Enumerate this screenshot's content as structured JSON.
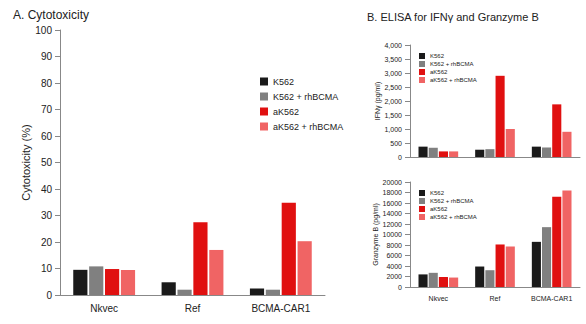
{
  "chart_data": [
    {
      "type": "bar",
      "title": "A. Cytotoxicity",
      "ylabel": "Cytotoxicity (%)",
      "categories": [
        "Nkvec",
        "Ref",
        "BCMA-CAR1"
      ],
      "series": [
        {
          "name": "K562",
          "color": "#1a1a1a",
          "values": [
            9.5,
            4.8,
            2.5
          ]
        },
        {
          "name": "K562 + rhBCMA",
          "color": "#808080",
          "values": [
            10.8,
            2.0,
            2.0
          ]
        },
        {
          "name": "aK562",
          "color": "#e01010",
          "values": [
            9.8,
            27.5,
            34.8
          ]
        },
        {
          "name": "aK562 + rhBCMA",
          "color": "#f06464",
          "values": [
            9.4,
            17.0,
            20.3
          ]
        }
      ],
      "ylim": [
        0,
        100
      ],
      "yticks": [
        0,
        10,
        20,
        30,
        40,
        50,
        60,
        70,
        80,
        90,
        100
      ],
      "grid": false,
      "legend": "upper right"
    },
    {
      "type": "bar",
      "title": "B. ELISA for IFNγ and Granzyme B",
      "ylabel": "IFNγ (pg/ml)",
      "categories": [
        "Nkvec",
        "Ref",
        "BCMA-CAR1"
      ],
      "series": [
        {
          "name": "K562",
          "color": "#1a1a1a",
          "values": [
            370,
            260,
            370
          ]
        },
        {
          "name": "K562 + rhBCMA",
          "color": "#808080",
          "values": [
            330,
            280,
            340
          ]
        },
        {
          "name": "aK562",
          "color": "#e01010",
          "values": [
            200,
            2900,
            1880
          ]
        },
        {
          "name": "aK562 + rhBCMA",
          "color": "#f06464",
          "values": [
            200,
            1000,
            900
          ]
        }
      ],
      "ylim": [
        0,
        4000
      ],
      "yticks": [
        0,
        500,
        {
          "value": 1000,
          "label": "1,000"
        },
        {
          "value": 1500,
          "label": "1,500"
        },
        {
          "value": 2000,
          "label": "2,000"
        },
        {
          "value": 2500,
          "label": "2,500"
        },
        {
          "value": 3000,
          "label": "3,000"
        },
        {
          "value": 3500,
          "label": "3,500"
        },
        {
          "value": 4000,
          "label": "4,000"
        }
      ],
      "grid": false,
      "legend": "upper left",
      "tick_labels": "y"
    },
    {
      "type": "bar",
      "ylabel": "Granzyme B (pg/ml)",
      "categories": [
        "Nkvec",
        "Ref",
        "BCMA-CAR1"
      ],
      "series": [
        {
          "name": "K562",
          "color": "#1a1a1a",
          "values": [
            2400,
            3900,
            8600
          ]
        },
        {
          "name": "K562 + rhBCMA",
          "color": "#808080",
          "values": [
            2700,
            3200,
            11400
          ]
        },
        {
          "name": "aK562",
          "color": "#e01010",
          "values": [
            1900,
            8100,
            17200
          ]
        },
        {
          "name": "aK562 + rhBCMA",
          "color": "#f06464",
          "values": [
            1800,
            7700,
            18400
          ]
        }
      ],
      "ylim": [
        0,
        20000
      ],
      "yticks": [
        0,
        2000,
        4000,
        6000,
        8000,
        10000,
        12000,
        14000,
        16000,
        18000,
        20000
      ],
      "grid": false,
      "legend": "upper left"
    }
  ]
}
